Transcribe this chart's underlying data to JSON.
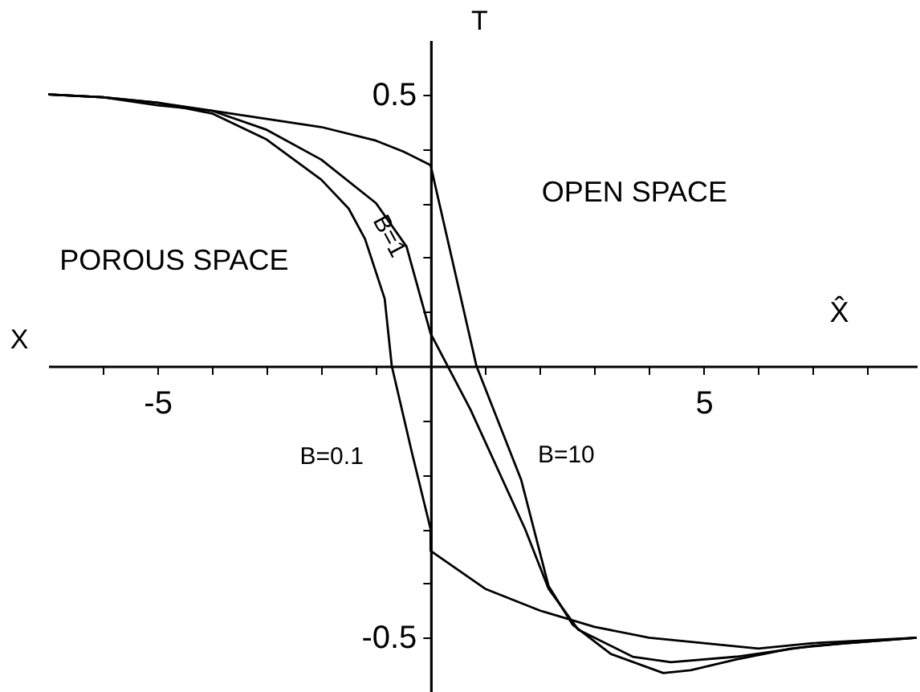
{
  "chart_data": {
    "type": "line",
    "xlabel": "X̂",
    "ylabel": "T",
    "xlim": [
      -7,
      8.9
    ],
    "ylim": [
      -0.6,
      0.6
    ],
    "xticks": [
      {
        "value": -6,
        "label": null
      },
      -5,
      {
        "value": -4,
        "label": null
      },
      {
        "value": -3,
        "label": null
      },
      {
        "value": -2,
        "label": null
      },
      {
        "value": -1,
        "label": null
      },
      {
        "value": 1,
        "label": null
      },
      {
        "value": 2,
        "label": null
      },
      {
        "value": 3,
        "label": null
      },
      {
        "value": 4,
        "label": null
      },
      5,
      {
        "value": 6,
        "label": null
      },
      {
        "value": 7,
        "label": null
      },
      {
        "value": 8,
        "label": null
      }
    ],
    "yticks": [
      -0.5,
      {
        "value": -0.4,
        "label": null
      },
      {
        "value": -0.3,
        "label": null
      },
      {
        "value": -0.2,
        "label": null
      },
      {
        "value": -0.1,
        "label": null
      },
      {
        "value": 0.1,
        "label": null
      },
      {
        "value": 0.2,
        "label": null
      },
      {
        "value": 0.3,
        "label": null
      },
      {
        "value": 0.4,
        "label": null
      },
      0.5
    ],
    "annotations": [
      "X",
      "POROUS SPACE",
      "OPEN SPACE"
    ],
    "series": [
      {
        "name": "B=0.1",
        "color": "#000000",
        "x": [
          -7,
          -6,
          -5,
          -4,
          -3,
          -2,
          -1.5,
          -1.2,
          -0.84,
          -0.71,
          -0.34,
          0,
          0,
          1,
          2,
          3,
          4,
          5,
          6,
          7,
          8.9
        ],
        "values": [
          0.5,
          0.495,
          0.485,
          0.465,
          0.417,
          0.343,
          0.29,
          0.234,
          0.124,
          0,
          -0.16,
          -0.3,
          -0.34,
          -0.41,
          -0.45,
          -0.48,
          -0.5,
          -0.51,
          -0.52,
          -0.51,
          -0.5
        ]
      },
      {
        "name": "B=1",
        "color": "#000000",
        "x": [
          -7,
          -6,
          -5,
          -4,
          -3,
          -2,
          -1,
          -0.44,
          0,
          0.73,
          1.73,
          2.16,
          2.7,
          3.7,
          4.4,
          5.6,
          7,
          8.9
        ],
        "values": [
          0.5,
          0.495,
          0.485,
          0.47,
          0.435,
          0.38,
          0.3,
          0.22,
          0.06,
          -0.08,
          -0.3,
          -0.41,
          -0.485,
          -0.535,
          -0.545,
          -0.535,
          -0.515,
          -0.5
        ]
      },
      {
        "name": "B=10",
        "color": "#000000",
        "x": [
          -7,
          -6,
          -5,
          -4,
          -3,
          -2,
          -1,
          -0.5,
          0,
          0.84,
          1.66,
          2.16,
          2.6,
          3.3,
          4.26,
          4.76,
          5.6,
          6.6,
          7.6,
          8.9
        ],
        "values": [
          0.5,
          0.495,
          0.48,
          0.47,
          0.455,
          0.44,
          0.415,
          0.395,
          0.37,
          0,
          -0.21,
          -0.405,
          -0.476,
          -0.53,
          -0.565,
          -0.56,
          -0.54,
          -0.52,
          -0.51,
          -0.5
        ]
      }
    ]
  }
}
